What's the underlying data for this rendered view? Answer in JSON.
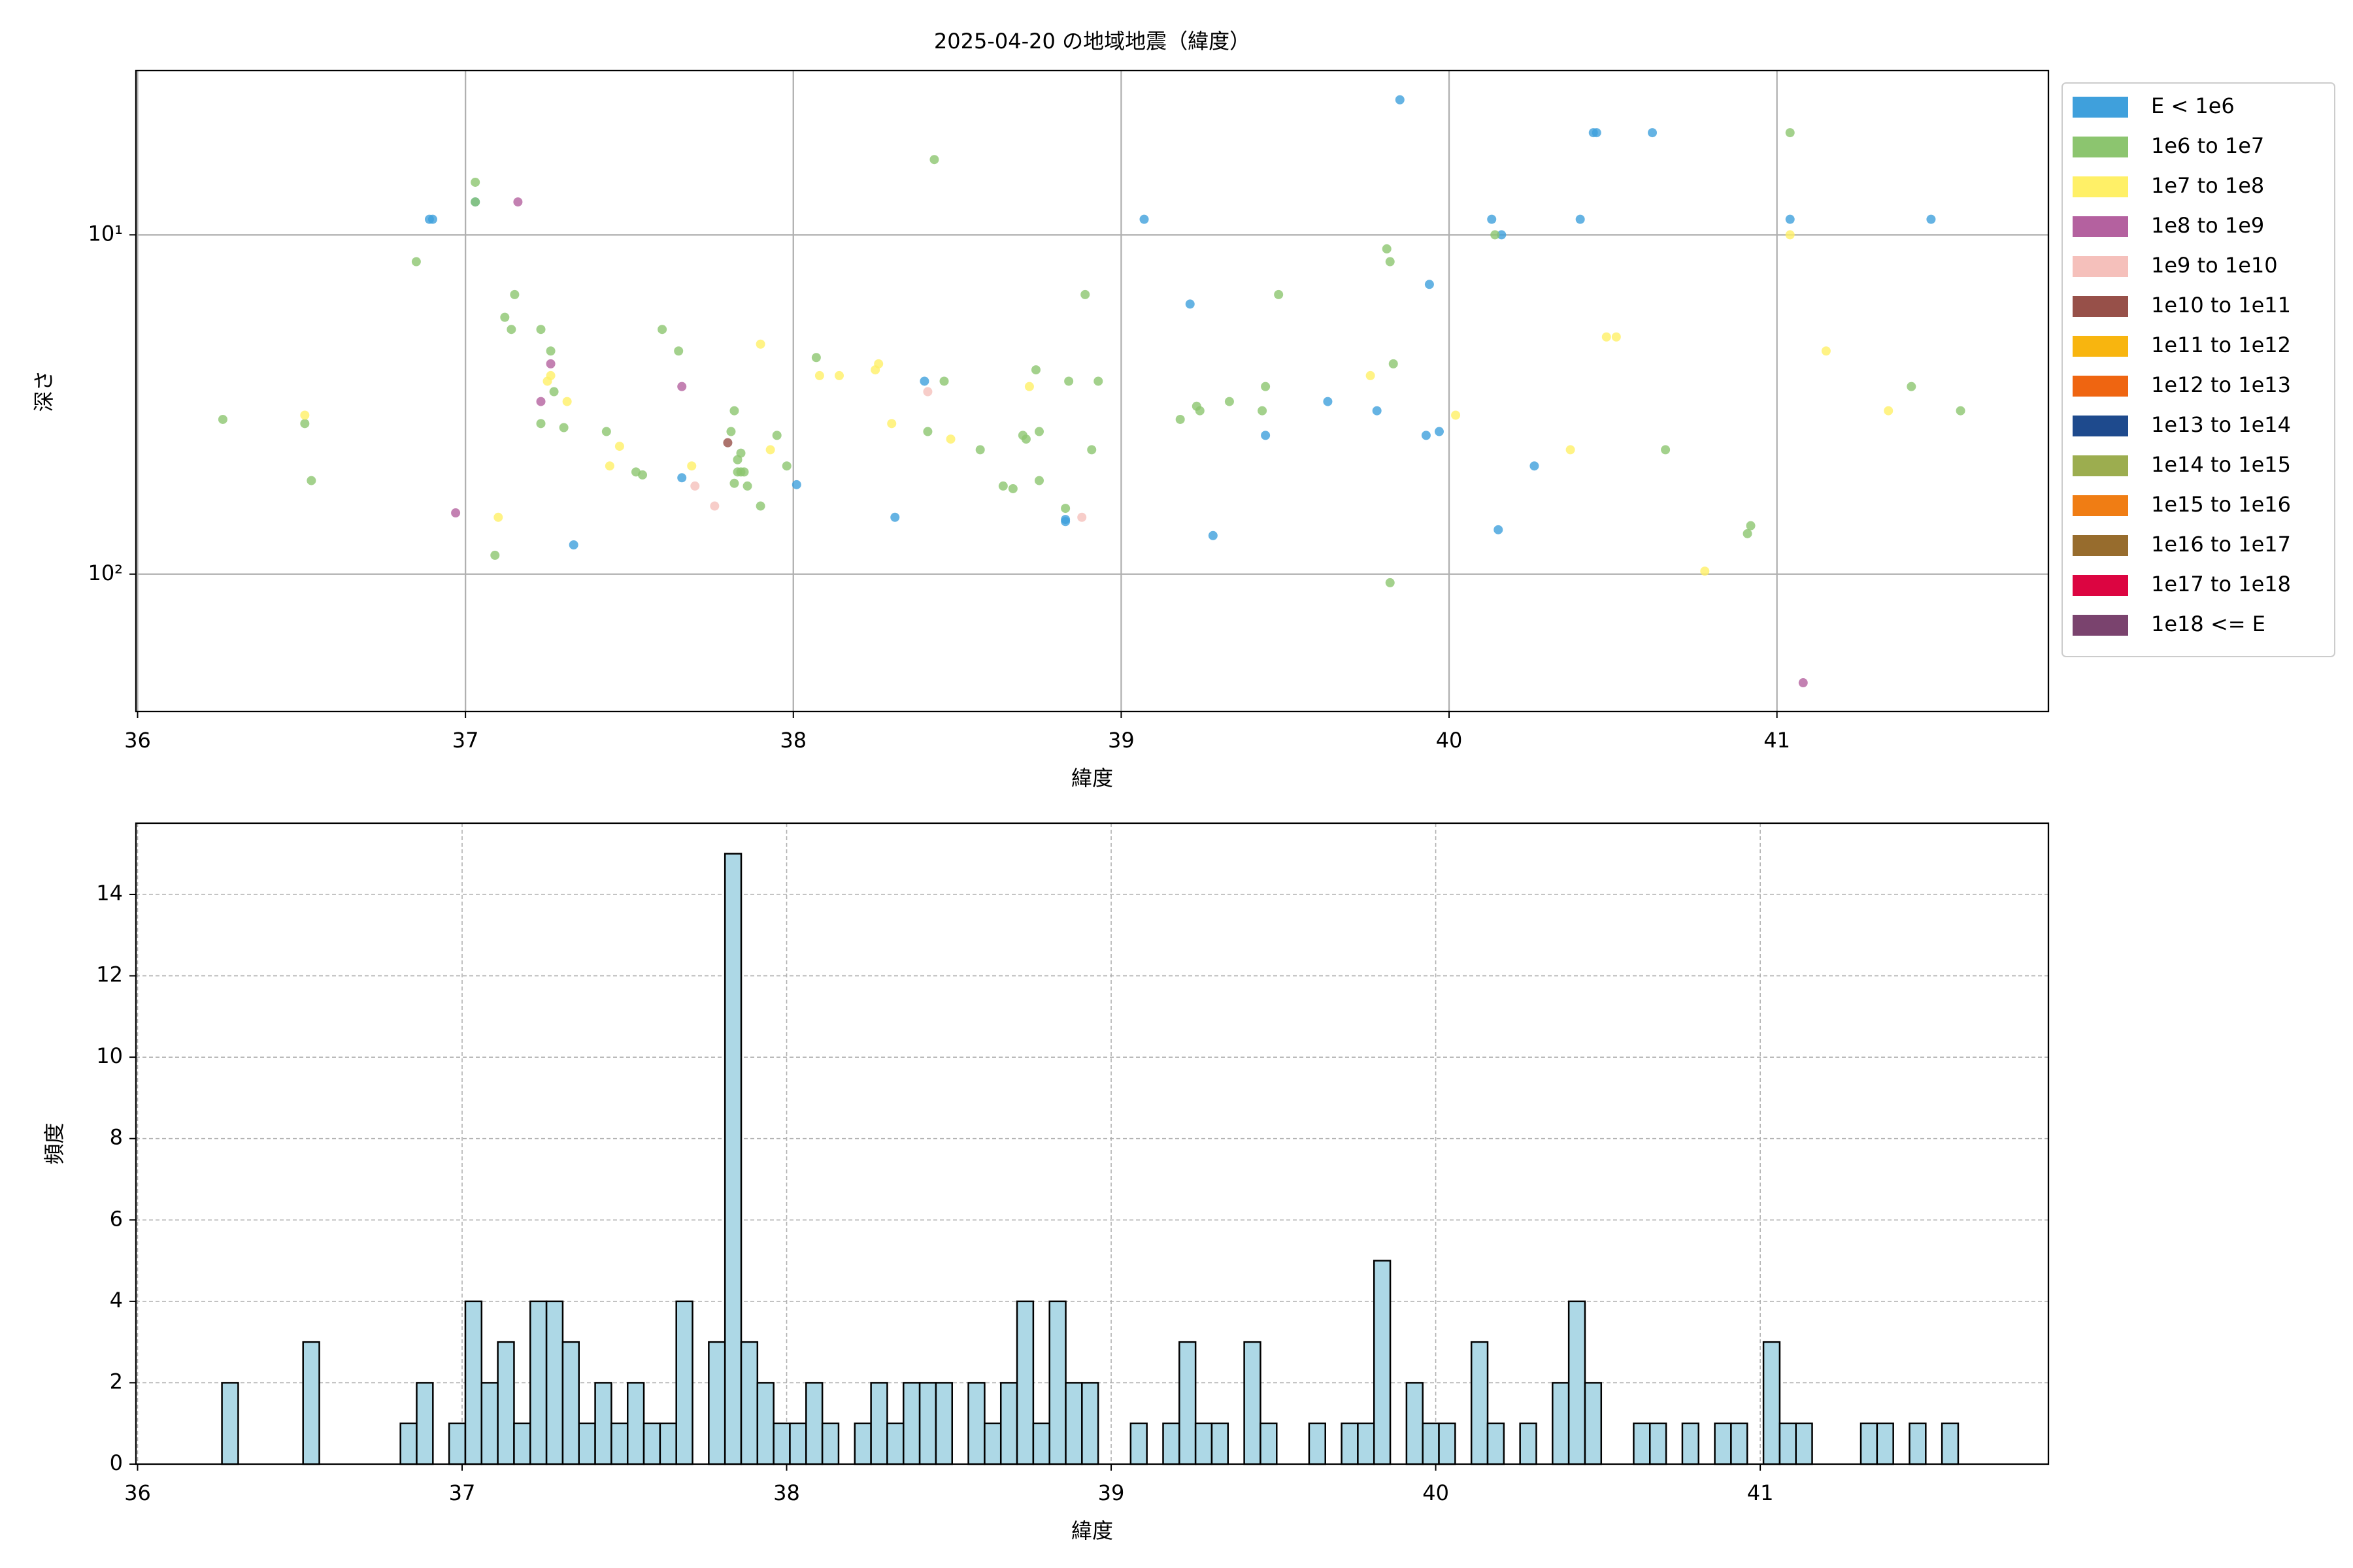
{
  "chart_data": [
    {
      "type": "scatter",
      "title": "2025-04-20 の地域地震（緯度）",
      "xlabel": "緯度",
      "ylabel": "深さ",
      "xlim": [
        35.995,
        41.828
      ],
      "xticks": [
        36,
        37,
        38,
        39,
        40,
        41
      ],
      "ylim": [
        3.28,
        254
      ],
      "yticks": [
        {
          "value": 10,
          "label": "10¹"
        },
        {
          "value": 100,
          "label": "10²"
        }
      ],
      "log_y": true,
      "y_inverted": true,
      "grid": true,
      "legend": "outside-upper-right",
      "series": [
        {
          "name": "E < 1e6",
          "color": "#3fa0dc",
          "x": [
            36.89,
            36.9,
            37.03,
            37.33,
            37.66,
            38.01,
            38.31,
            38.4,
            38.83,
            38.83,
            39.07,
            39.21,
            39.28,
            39.44,
            39.63,
            39.78,
            39.85,
            39.93,
            39.94,
            39.97,
            40.13,
            40.16,
            40.15,
            40.26,
            40.4,
            40.44,
            40.45,
            40.62,
            41.04,
            41.47
          ],
          "y": [
            9,
            9,
            8,
            82,
            52,
            54.5,
            68,
            27,
            69,
            70,
            9,
            16,
            77,
            39,
            31,
            33,
            4,
            39,
            14,
            38,
            9,
            10,
            74,
            48,
            9,
            5,
            5,
            5,
            9,
            9
          ]
        },
        {
          "name": "1e6 to 1e7",
          "color": "#8cc56f",
          "x": [
            36.26,
            36.51,
            36.53,
            36.85,
            37.03,
            37.03,
            37.12,
            37.14,
            37.15,
            37.09,
            37.23,
            37.23,
            37.26,
            37.27,
            37.3,
            37.43,
            37.52,
            37.54,
            37.6,
            37.65,
            37.81,
            37.82,
            37.83,
            37.82,
            37.84,
            37.84,
            37.85,
            37.86,
            37.9,
            37.95,
            37.98,
            37.83,
            38.07,
            38.41,
            38.43,
            38.46,
            38.57,
            38.64,
            38.67,
            38.7,
            38.71,
            38.74,
            38.75,
            38.75,
            38.83,
            38.84,
            38.89,
            38.91,
            38.93,
            39.18,
            39.23,
            39.24,
            39.33,
            39.43,
            39.44,
            39.48,
            39.81,
            39.82,
            39.82,
            39.83,
            40.14,
            40.66,
            40.91,
            40.92,
            41.04,
            41.41,
            41.56
          ],
          "y": [
            35,
            36,
            53,
            12,
            7,
            8,
            17.5,
            19,
            15,
            88,
            19,
            36,
            22,
            29,
            37,
            38,
            50,
            51,
            19,
            22,
            38,
            33,
            50,
            54,
            44,
            50,
            50,
            55,
            63,
            39,
            48,
            46,
            23,
            38,
            6,
            27,
            43,
            55,
            56,
            39,
            40,
            25,
            38,
            53,
            64,
            27,
            15,
            43,
            27,
            35,
            32,
            33,
            31,
            33,
            28,
            15,
            11,
            12,
            106,
            24,
            10,
            43,
            76,
            72,
            5,
            28,
            33
          ]
        },
        {
          "name": "1e7 to 1e8",
          "color": "#fff067",
          "x": [
            36.51,
            37.1,
            37.25,
            37.26,
            37.31,
            37.44,
            37.47,
            37.69,
            37.9,
            37.93,
            38.08,
            38.14,
            38.25,
            38.26,
            38.3,
            38.48,
            38.72,
            39.76,
            40.02,
            40.37,
            40.48,
            40.51,
            40.78,
            41.04,
            41.15,
            41.34
          ],
          "y": [
            34,
            68,
            27,
            26,
            31,
            48,
            42,
            48,
            21,
            43,
            26,
            26,
            25,
            24,
            36,
            40,
            28,
            26,
            34,
            43,
            20,
            20,
            98,
            10,
            22,
            33
          ]
        },
        {
          "name": "1e8 to 1e9",
          "color": "#b4619f",
          "x": [
            37.16,
            36.97,
            37.23,
            37.26,
            37.66,
            41.08
          ],
          "y": [
            8,
            66,
            31,
            24,
            28,
            209
          ]
        },
        {
          "name": "1e9 to 1e10",
          "color": "#f5c0bb",
          "x": [
            37.7,
            37.76,
            38.41,
            38.88
          ],
          "y": [
            55,
            63,
            29,
            68
          ]
        },
        {
          "name": "1e10 to 1e11",
          "color": "#975049",
          "x": [
            37.8
          ],
          "y": [
            41
          ]
        },
        {
          "name": "1e11 to 1e12",
          "color": "#f8b50f",
          "x": [],
          "y": []
        },
        {
          "name": "1e12 to 1e13",
          "color": "#ef6511",
          "x": [],
          "y": []
        },
        {
          "name": "1e13 to 1e14",
          "color": "#1e4a8d",
          "x": [],
          "y": []
        },
        {
          "name": "1e14 to 1e15",
          "color": "#9cad4f",
          "x": [],
          "y": []
        },
        {
          "name": "1e15 to 1e16",
          "color": "#f07d14",
          "x": [],
          "y": []
        },
        {
          "name": "1e16 to 1e17",
          "color": "#976c2d",
          "x": [],
          "y": []
        },
        {
          "name": "1e17 to 1e18",
          "color": "#dc0541",
          "x": [],
          "y": []
        },
        {
          "name": "1e18 <= E",
          "color": "#7a436e",
          "x": [],
          "y": []
        }
      ]
    },
    {
      "type": "histogram",
      "xlabel": "緯度",
      "ylabel": "頻度",
      "color": "#add8e6",
      "edgecolor": "#000000",
      "xlim": [
        35.995,
        41.888
      ],
      "xticks": [
        36,
        37,
        38,
        39,
        40,
        41
      ],
      "ylim": [
        0,
        15.75
      ],
      "yticks": [
        0,
        2,
        4,
        6,
        8,
        10,
        12,
        14
      ],
      "grid": "dashed",
      "bins": [
        36.26,
        36.31,
        36.36,
        36.41,
        36.46,
        36.51,
        36.56,
        36.61,
        36.66,
        36.71,
        36.76,
        36.81,
        36.86,
        36.91,
        36.96,
        37.01,
        37.06,
        37.11,
        37.16,
        37.21,
        37.26,
        37.31,
        37.36,
        37.41,
        37.46,
        37.51,
        37.56,
        37.61,
        37.66,
        37.71,
        37.76,
        37.81,
        37.86,
        37.91,
        37.96,
        38.01,
        38.06,
        38.11,
        38.16,
        38.21,
        38.26,
        38.31,
        38.36,
        38.41,
        38.46,
        38.51,
        38.56,
        38.61,
        38.66,
        38.71,
        38.76,
        38.81,
        38.86,
        38.91,
        38.96,
        39.01,
        39.06,
        39.11,
        39.16,
        39.21,
        39.26,
        39.31,
        39.36,
        39.41,
        39.46,
        39.51,
        39.56,
        39.61,
        39.66,
        39.71,
        39.76,
        39.81,
        39.86,
        39.91,
        39.96,
        40.01,
        40.06,
        40.11,
        40.16,
        40.21,
        40.26,
        40.31,
        40.36,
        40.41,
        40.46,
        40.51,
        40.56,
        40.61,
        40.66,
        40.71,
        40.76,
        40.81,
        40.86,
        40.91,
        40.96,
        41.01,
        41.06,
        41.11,
        41.16,
        41.21,
        41.26,
        41.31,
        41.36,
        41.41,
        41.46,
        41.51,
        41.56,
        41.61
      ],
      "counts": [
        2,
        0,
        0,
        0,
        0,
        3,
        0,
        0,
        0,
        0,
        0,
        1,
        2,
        0,
        1,
        4,
        2,
        3,
        1,
        4,
        4,
        3,
        1,
        2,
        1,
        2,
        1,
        1,
        4,
        0,
        3,
        15,
        3,
        2,
        1,
        1,
        2,
        1,
        0,
        1,
        2,
        1,
        2,
        2,
        2,
        0,
        2,
        1,
        2,
        4,
        1,
        4,
        2,
        2,
        0,
        0,
        1,
        0,
        1,
        3,
        1,
        1,
        0,
        3,
        1,
        0,
        0,
        1,
        0,
        1,
        1,
        5,
        0,
        2,
        1,
        1,
        0,
        3,
        1,
        0,
        1,
        0,
        2,
        4,
        2,
        0,
        0,
        1,
        1,
        0,
        1,
        0,
        1,
        1,
        0,
        3,
        1,
        1,
        0,
        0,
        0,
        1,
        1,
        0,
        1,
        0,
        1
      ]
    }
  ]
}
